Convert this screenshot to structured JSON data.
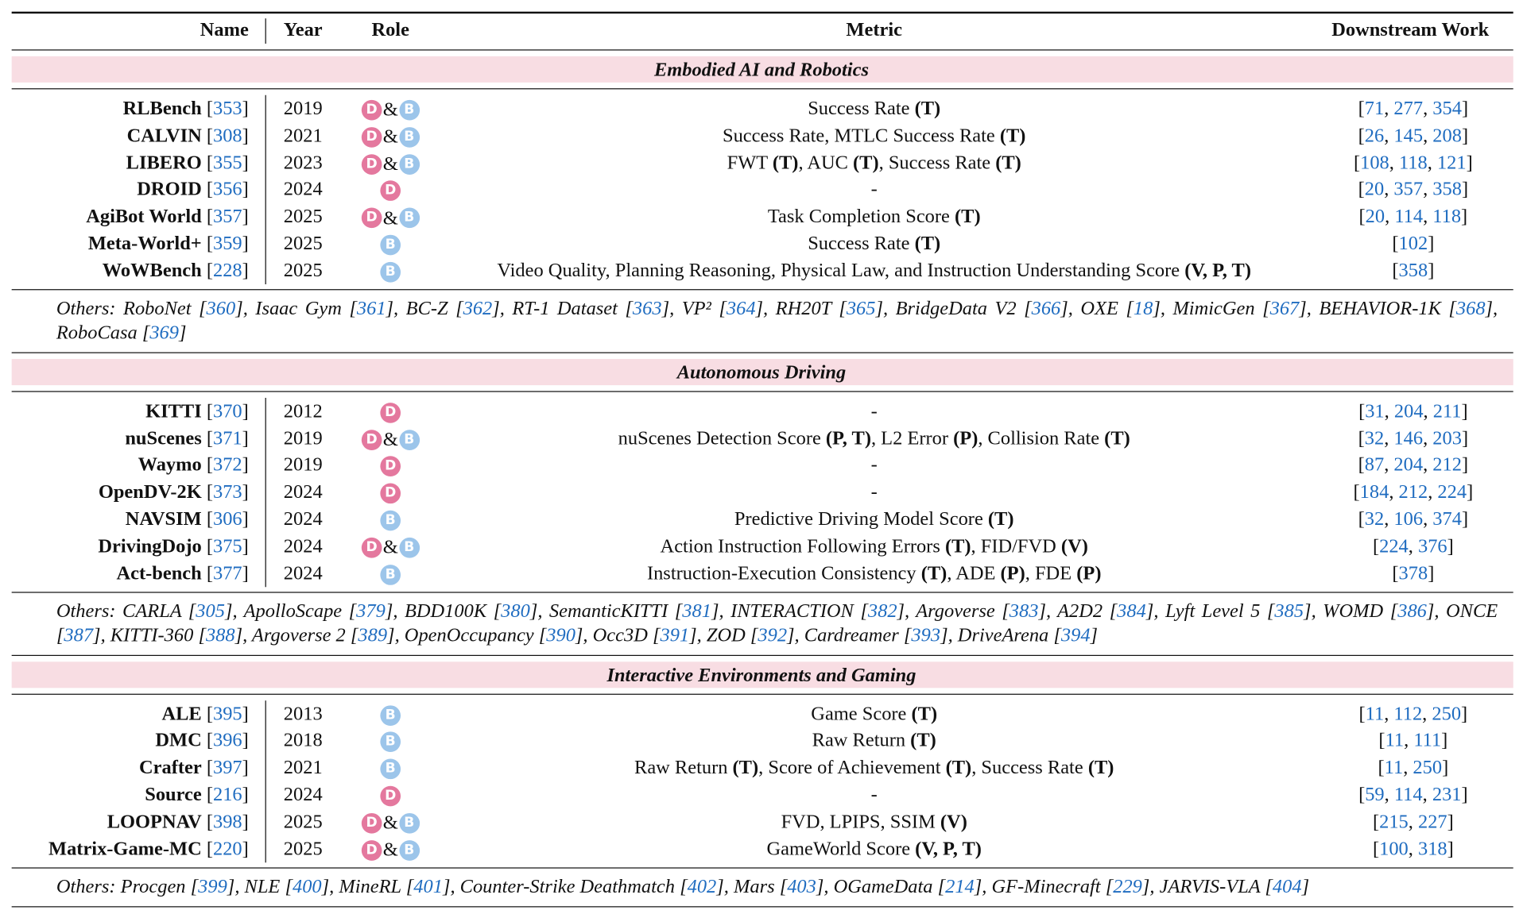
{
  "header": {
    "name": "Name",
    "year": "Year",
    "role": "Role",
    "metric": "Metric",
    "downstream": "Downstream Work"
  },
  "sections": [
    {
      "title": "Embodied AI and Robotics",
      "rows": [
        {
          "name": "RLBench",
          "ref": "[353]",
          "year": "2019",
          "role": "D&B",
          "metric": [
            {
              "text": "Success Rate "
            },
            {
              "text": "(T)",
              "bold": true
            }
          ],
          "downstream": "[71, 277, 354]"
        },
        {
          "name": "CALVIN",
          "ref": "[308]",
          "year": "2021",
          "role": "D&B",
          "metric": [
            {
              "text": "Success Rate, MTLC Success Rate "
            },
            {
              "text": "(T)",
              "bold": true
            }
          ],
          "downstream": "[26, 145, 208]"
        },
        {
          "name": "LIBERO",
          "ref": "[355]",
          "year": "2023",
          "role": "D&B",
          "metric": [
            {
              "text": "FWT "
            },
            {
              "text": "(T)",
              "bold": true
            },
            {
              "text": ", AUC "
            },
            {
              "text": "(T)",
              "bold": true
            },
            {
              "text": ", Success Rate "
            },
            {
              "text": "(T)",
              "bold": true
            }
          ],
          "downstream": "[108, 118, 121]"
        },
        {
          "name": "DROID",
          "ref": "[356]",
          "year": "2024",
          "role": "D",
          "metric": [
            {
              "text": "-"
            }
          ],
          "downstream": "[20, 357, 358]"
        },
        {
          "name": "AgiBot World",
          "ref": "[357]",
          "year": "2025",
          "role": "D&B",
          "metric": [
            {
              "text": "Task Completion Score "
            },
            {
              "text": "(T)",
              "bold": true
            }
          ],
          "downstream": "[20, 114, 118]"
        },
        {
          "name": "Meta-World+",
          "ref": "[359]",
          "year": "2025",
          "role": "B",
          "metric": [
            {
              "text": "Success Rate "
            },
            {
              "text": "(T)",
              "bold": true
            }
          ],
          "downstream": "[102]"
        },
        {
          "name": "WoWBench",
          "ref": "[228]",
          "year": "2025",
          "role": "B",
          "metric": [
            {
              "text": "Video Quality, Planning Reasoning, Physical Law, and Instruction Understanding Score "
            },
            {
              "text": "(V, P, T)",
              "bold": true
            }
          ],
          "downstream": "[358]"
        }
      ],
      "others": "Others: RoboNet [360], Isaac Gym [361], BC-Z [362], RT-1 Dataset [363], VP² [364], RH20T [365], BridgeData V2 [366], OXE [18], MimicGen [367], BEHAVIOR-1K [368], RoboCasa [369]"
    },
    {
      "title": "Autonomous Driving",
      "rows": [
        {
          "name": "KITTI",
          "ref": "[370]",
          "year": "2012",
          "role": "D",
          "metric": [
            {
              "text": "-"
            }
          ],
          "downstream": "[31, 204, 211]"
        },
        {
          "name": "nuScenes",
          "ref": "[371]",
          "year": "2019",
          "role": "D&B",
          "metric": [
            {
              "text": "nuScenes Detection Score "
            },
            {
              "text": "(P, T)",
              "bold": true
            },
            {
              "text": ", L2 Error "
            },
            {
              "text": "(P)",
              "bold": true
            },
            {
              "text": ", Collision Rate "
            },
            {
              "text": "(T)",
              "bold": true
            }
          ],
          "downstream": "[32, 146, 203]"
        },
        {
          "name": "Waymo",
          "ref": "[372]",
          "year": "2019",
          "role": "D",
          "metric": [
            {
              "text": "-"
            }
          ],
          "downstream": "[87, 204, 212]"
        },
        {
          "name": "OpenDV-2K",
          "ref": "[373]",
          "year": "2024",
          "role": "D",
          "metric": [
            {
              "text": "-"
            }
          ],
          "downstream": "[184, 212, 224]"
        },
        {
          "name": "NAVSIM",
          "ref": "[306]",
          "year": "2024",
          "role": "B",
          "metric": [
            {
              "text": "Predictive Driving Model Score "
            },
            {
              "text": "(T)",
              "bold": true
            }
          ],
          "downstream": "[32, 106, 374]"
        },
        {
          "name": "DrivingDojo",
          "ref": "[375]",
          "year": "2024",
          "role": "D&B",
          "metric": [
            {
              "text": "Action Instruction Following Errors "
            },
            {
              "text": "(T)",
              "bold": true
            },
            {
              "text": ", FID/FVD "
            },
            {
              "text": "(V)",
              "bold": true
            }
          ],
          "downstream": "[224, 376]"
        },
        {
          "name": "Act-bench",
          "ref": "[377]",
          "year": "2024",
          "role": "B",
          "metric": [
            {
              "text": "Instruction-Execution Consistency "
            },
            {
              "text": "(T)",
              "bold": true
            },
            {
              "text": ", ADE "
            },
            {
              "text": "(P)",
              "bold": true
            },
            {
              "text": ", FDE "
            },
            {
              "text": "(P)",
              "bold": true
            }
          ],
          "downstream": "[378]"
        }
      ],
      "others": "Others: CARLA [305], ApolloScape [379], BDD100K [380], SemanticKITTI [381], INTERACTION [382], Argoverse [383], A2D2 [384], Lyft Level 5 [385], WOMD [386], ONCE [387], KITTI-360 [388], Argoverse 2 [389], OpenOccupancy [390], Occ3D [391], ZOD [392], Cardreamer [393], DriveArena [394]"
    },
    {
      "title": "Interactive Environments and Gaming",
      "rows": [
        {
          "name": "ALE",
          "ref": "[395]",
          "year": "2013",
          "role": "B",
          "metric": [
            {
              "text": "Game Score "
            },
            {
              "text": "(T)",
              "bold": true
            }
          ],
          "downstream": "[11, 112, 250]"
        },
        {
          "name": "DMC",
          "ref": "[396]",
          "year": "2018",
          "role": "B",
          "metric": [
            {
              "text": "Raw Return "
            },
            {
              "text": "(T)",
              "bold": true
            }
          ],
          "downstream": "[11, 111]"
        },
        {
          "name": "Crafter",
          "ref": "[397]",
          "year": "2021",
          "role": "B",
          "metric": [
            {
              "text": "Raw Return "
            },
            {
              "text": "(T)",
              "bold": true
            },
            {
              "text": ", Score of Achievement "
            },
            {
              "text": "(T)",
              "bold": true
            },
            {
              "text": ", Success Rate "
            },
            {
              "text": "(T)",
              "bold": true
            }
          ],
          "downstream": "[11, 250]"
        },
        {
          "name": "Source",
          "ref": "[216]",
          "year": "2024",
          "role": "D",
          "metric": [
            {
              "text": "-"
            }
          ],
          "downstream": "[59, 114, 231]"
        },
        {
          "name": "LOOPNAV",
          "ref": "[398]",
          "year": "2025",
          "role": "D&B",
          "metric": [
            {
              "text": "FVD, LPIPS, SSIM "
            },
            {
              "text": "(V)",
              "bold": true
            }
          ],
          "downstream": "[215, 227]"
        },
        {
          "name": "Matrix-Game-MC",
          "ref": "[220]",
          "year": "2025",
          "role": "D&B",
          "metric": [
            {
              "text": "GameWorld Score "
            },
            {
              "text": "(V, P, T)",
              "bold": true
            }
          ],
          "downstream": "[100, 318]"
        }
      ],
      "others": "Others: Procgen [399], NLE [400], MineRL [401], Counter-Strike Deathmatch [402], Mars [403], OGameData [214], GF-Minecraft [229], JARVIS-VLA [404]"
    }
  ]
}
